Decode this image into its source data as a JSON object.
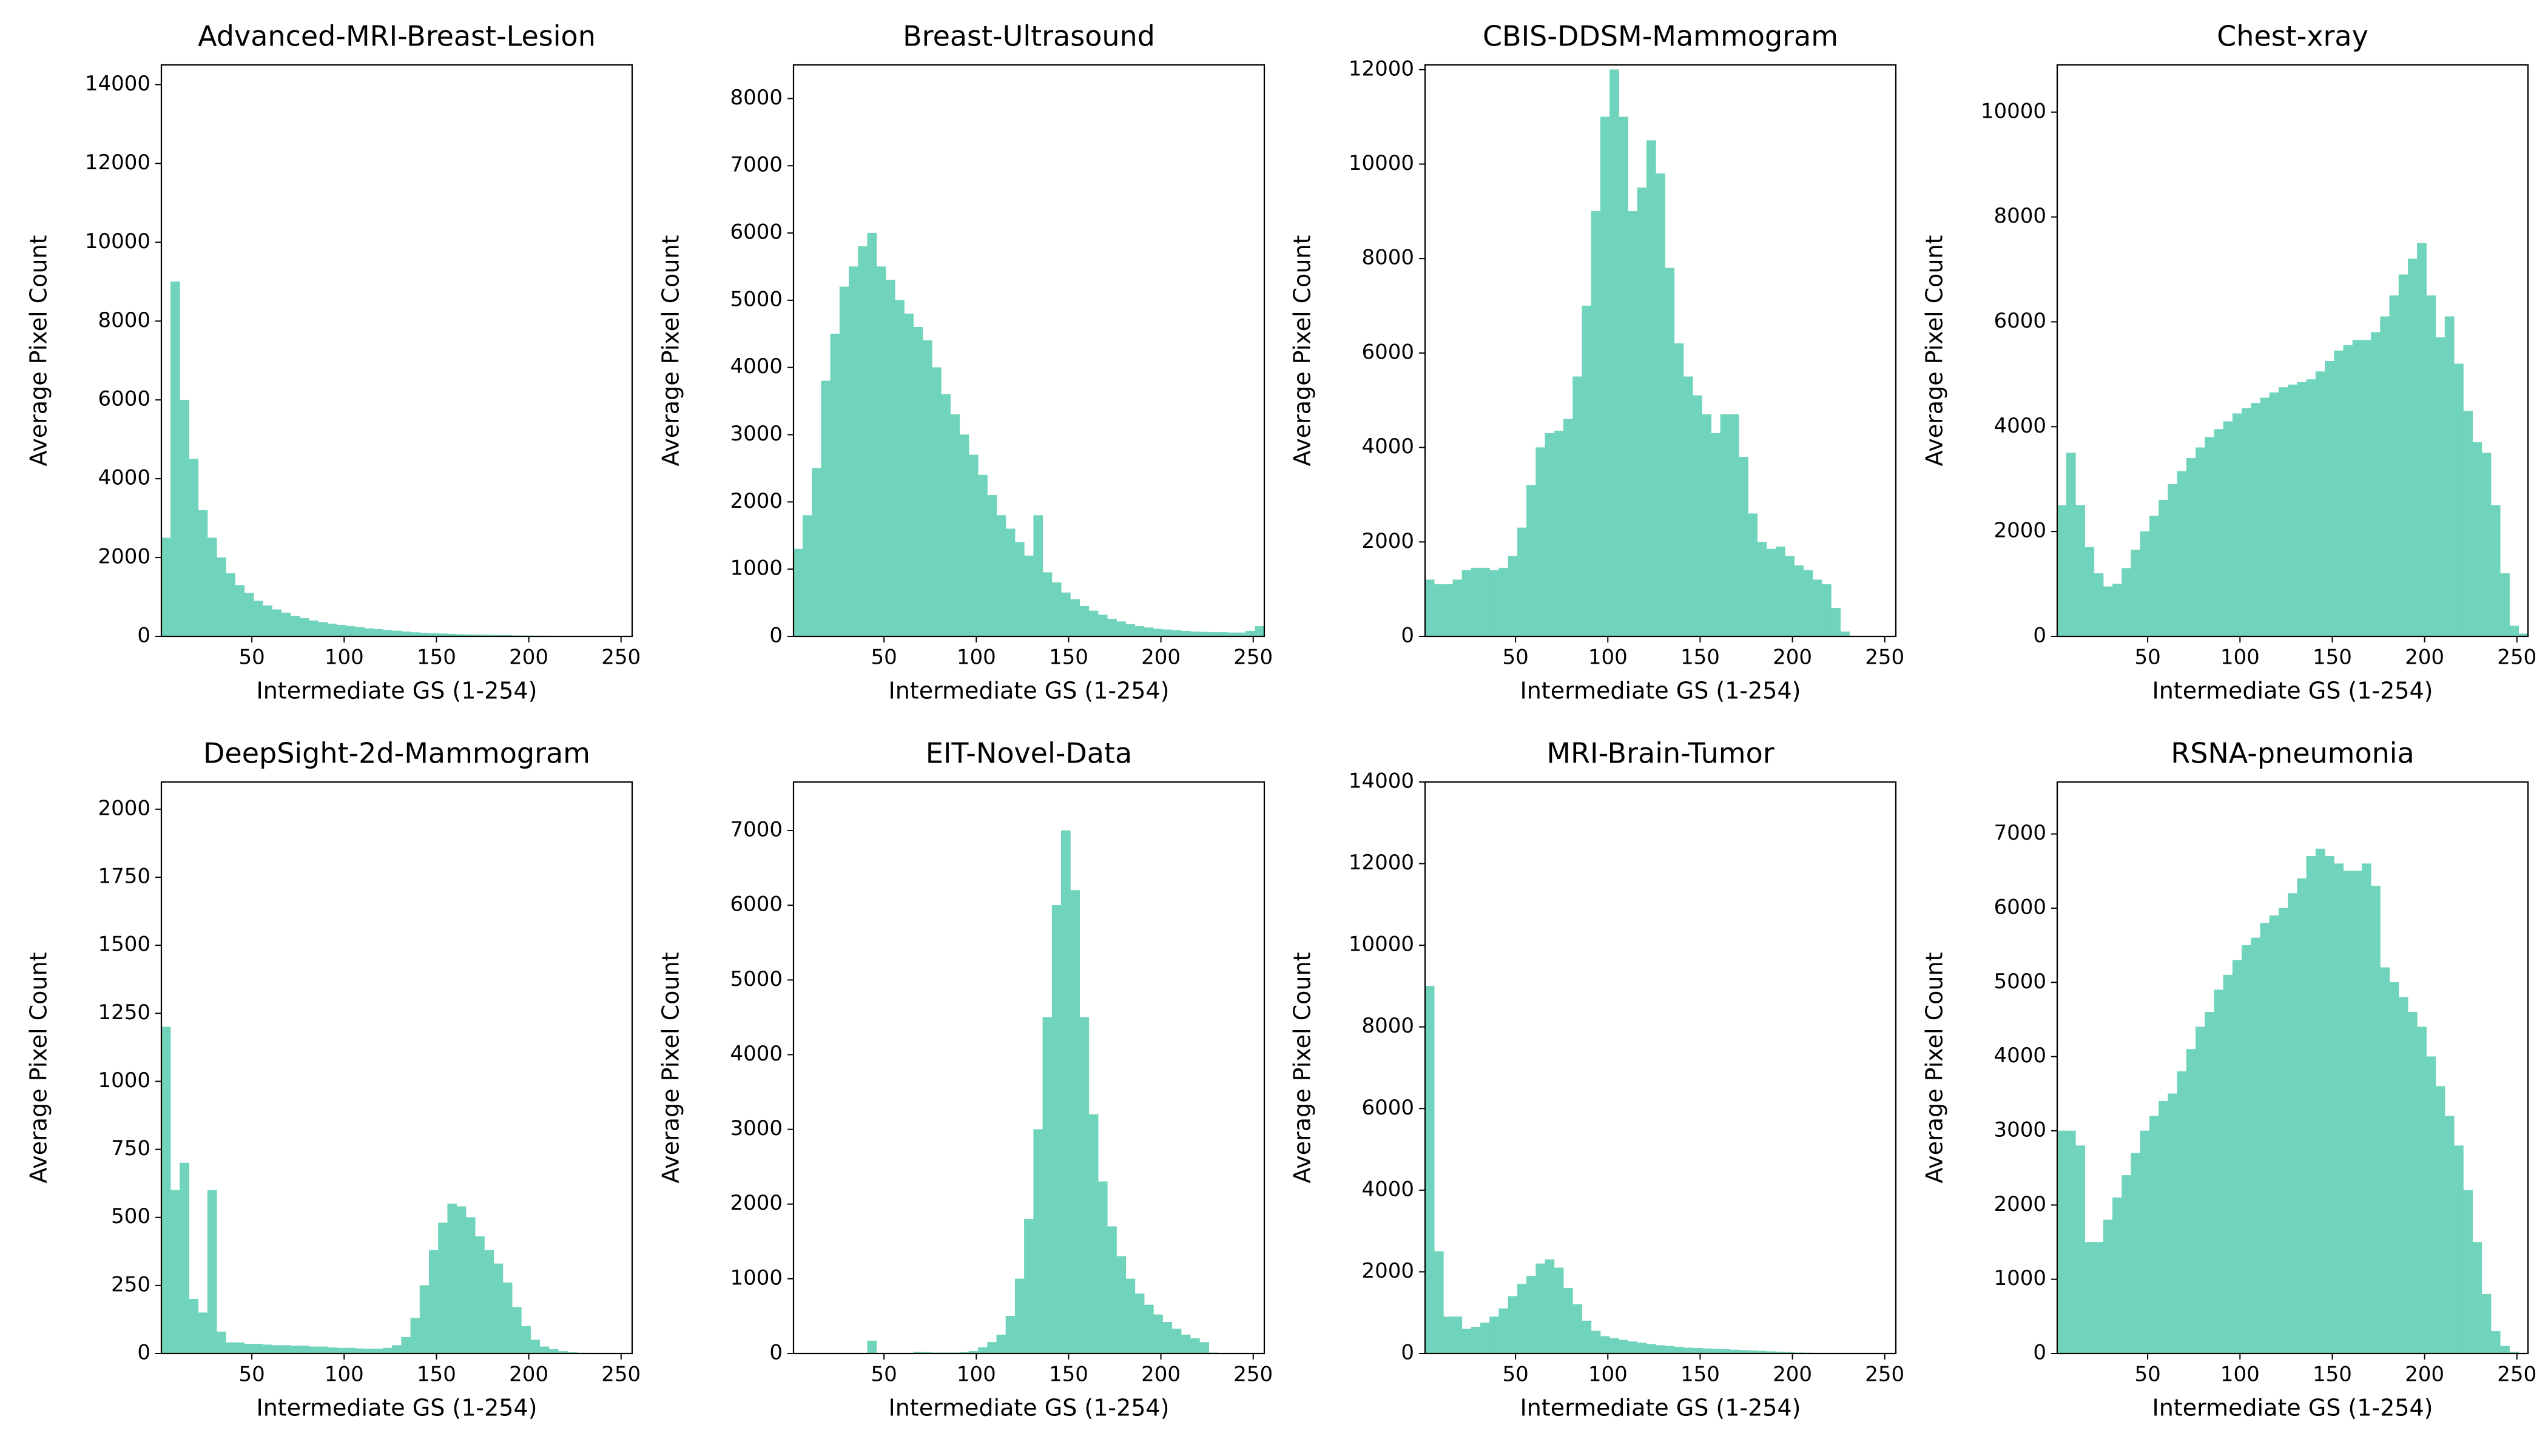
{
  "chart_data": [
    {
      "type": "histogram",
      "title": "Advanced-MRI-Breast-Lesion",
      "xlabel": "Intermediate GS (1-254)",
      "ylabel": "Average Pixel Count",
      "color": "#6fd4bb",
      "bins": [
        1,
        6,
        11,
        16,
        21,
        26,
        31,
        36,
        41,
        46,
        51,
        56,
        61,
        66,
        71,
        76,
        81,
        86,
        91,
        96,
        101,
        106,
        111,
        116,
        121,
        126,
        131,
        136,
        141,
        146,
        151,
        156,
        161,
        166,
        171,
        176,
        181,
        186,
        191,
        196,
        201,
        206,
        211,
        216,
        221,
        226,
        231,
        236,
        241,
        246,
        251,
        256
      ],
      "values": [
        2500,
        9000,
        6000,
        4500,
        3200,
        2500,
        2000,
        1600,
        1300,
        1100,
        900,
        780,
        680,
        600,
        520,
        460,
        400,
        360,
        320,
        290,
        260,
        230,
        200,
        180,
        160,
        140,
        120,
        100,
        90,
        80,
        70,
        60,
        50,
        45,
        40,
        35,
        30,
        25,
        20,
        18,
        15,
        12,
        10,
        8,
        6,
        5,
        4,
        3,
        2,
        1,
        0
      ],
      "xlim": [
        1,
        256
      ],
      "ylim": [
        0,
        14500
      ],
      "xticks": [
        50,
        100,
        150,
        200,
        250
      ],
      "yticks": [
        0,
        2000,
        4000,
        6000,
        8000,
        10000,
        12000,
        14000
      ]
    },
    {
      "type": "histogram",
      "title": "Breast-Ultrasound",
      "xlabel": "Intermediate GS (1-254)",
      "ylabel": "Average Pixel Count",
      "color": "#6fd4bb",
      "bins": [
        1,
        6,
        11,
        16,
        21,
        26,
        31,
        36,
        41,
        46,
        51,
        56,
        61,
        66,
        71,
        76,
        81,
        86,
        91,
        96,
        101,
        106,
        111,
        116,
        121,
        126,
        131,
        136,
        141,
        146,
        151,
        156,
        161,
        166,
        171,
        176,
        181,
        186,
        191,
        196,
        201,
        206,
        211,
        216,
        221,
        226,
        231,
        236,
        241,
        246,
        251,
        256
      ],
      "values": [
        1300,
        1800,
        2500,
        3800,
        4500,
        5200,
        5500,
        5800,
        6000,
        5500,
        5300,
        5000,
        4800,
        4600,
        4400,
        4000,
        3600,
        3300,
        3000,
        2700,
        2400,
        2100,
        1800,
        1600,
        1400,
        1200,
        1800,
        950,
        800,
        650,
        550,
        450,
        380,
        320,
        260,
        220,
        180,
        150,
        130,
        110,
        100,
        90,
        80,
        70,
        65,
        60,
        60,
        55,
        55,
        80,
        150
      ],
      "xlim": [
        1,
        256
      ],
      "ylim": [
        0,
        8500
      ],
      "xticks": [
        50,
        100,
        150,
        200,
        250
      ],
      "yticks": [
        0,
        1000,
        2000,
        3000,
        4000,
        5000,
        6000,
        7000,
        8000
      ]
    },
    {
      "type": "histogram",
      "title": "CBIS-DDSM-Mammogram",
      "xlabel": "Intermediate GS (1-254)",
      "ylabel": "Average Pixel Count",
      "color": "#6fd4bb",
      "bins": [
        1,
        6,
        11,
        16,
        21,
        26,
        31,
        36,
        41,
        46,
        51,
        56,
        61,
        66,
        71,
        76,
        81,
        86,
        91,
        96,
        101,
        106,
        111,
        116,
        121,
        126,
        131,
        136,
        141,
        146,
        151,
        156,
        161,
        166,
        171,
        176,
        181,
        186,
        191,
        196,
        201,
        206,
        211,
        216,
        221,
        226,
        231,
        236,
        241,
        246,
        251,
        256
      ],
      "values": [
        1200,
        1100,
        1100,
        1200,
        1400,
        1450,
        1450,
        1400,
        1450,
        1700,
        2300,
        3200,
        4000,
        4300,
        4350,
        4600,
        5500,
        7000,
        9000,
        11000,
        12000,
        11000,
        9000,
        9500,
        10500,
        9800,
        7800,
        6200,
        5500,
        5100,
        4700,
        4300,
        4700,
        4700,
        3800,
        2600,
        2000,
        1850,
        1900,
        1700,
        1500,
        1400,
        1200,
        1100,
        600,
        100,
        0,
        0,
        0,
        0,
        0
      ],
      "xlim": [
        1,
        256
      ],
      "ylim": [
        0,
        12100
      ],
      "xticks": [
        50,
        100,
        150,
        200,
        250
      ],
      "yticks": [
        0,
        2000,
        4000,
        6000,
        8000,
        10000,
        12000
      ]
    },
    {
      "type": "histogram",
      "title": "Chest-xray",
      "xlabel": "Intermediate GS (1-254)",
      "ylabel": "Average Pixel Count",
      "color": "#6fd4bb",
      "bins": [
        1,
        6,
        11,
        16,
        21,
        26,
        31,
        36,
        41,
        46,
        51,
        56,
        61,
        66,
        71,
        76,
        81,
        86,
        91,
        96,
        101,
        106,
        111,
        116,
        121,
        126,
        131,
        136,
        141,
        146,
        151,
        156,
        161,
        166,
        171,
        176,
        181,
        186,
        191,
        196,
        201,
        206,
        211,
        216,
        221,
        226,
        231,
        236,
        241,
        246,
        251,
        256
      ],
      "values": [
        2500,
        3500,
        2500,
        1700,
        1200,
        950,
        1000,
        1300,
        1650,
        2000,
        2300,
        2600,
        2900,
        3150,
        3400,
        3600,
        3800,
        3950,
        4100,
        4250,
        4350,
        4450,
        4550,
        4650,
        4750,
        4800,
        4850,
        4900,
        5050,
        5250,
        5450,
        5550,
        5650,
        5650,
        5800,
        6100,
        6500,
        6900,
        7200,
        7500,
        6500,
        5700,
        6100,
        5200,
        4300,
        3700,
        3500,
        2500,
        1200,
        200,
        50
      ],
      "xlim": [
        1,
        256
      ],
      "ylim": [
        0,
        10900
      ],
      "xticks": [
        50,
        100,
        150,
        200,
        250
      ],
      "yticks": [
        0,
        2000,
        4000,
        6000,
        8000,
        10000
      ]
    },
    {
      "type": "histogram",
      "title": "DeepSight-2d-Mammogram",
      "xlabel": "Intermediate GS (1-254)",
      "ylabel": "Average Pixel Count",
      "color": "#6fd4bb",
      "bins": [
        1,
        6,
        11,
        16,
        21,
        26,
        31,
        36,
        41,
        46,
        51,
        56,
        61,
        66,
        71,
        76,
        81,
        86,
        91,
        96,
        101,
        106,
        111,
        116,
        121,
        126,
        131,
        136,
        141,
        146,
        151,
        156,
        161,
        166,
        171,
        176,
        181,
        186,
        191,
        196,
        201,
        206,
        211,
        216,
        221,
        226,
        231,
        236,
        241,
        246,
        251,
        256
      ],
      "values": [
        1200,
        600,
        700,
        200,
        150,
        600,
        80,
        40,
        40,
        35,
        35,
        32,
        30,
        30,
        28,
        28,
        25,
        25,
        22,
        20,
        20,
        18,
        17,
        17,
        20,
        30,
        60,
        130,
        250,
        380,
        480,
        550,
        540,
        500,
        430,
        380,
        330,
        260,
        170,
        100,
        50,
        25,
        15,
        8,
        4,
        2,
        1,
        0,
        0,
        0,
        0
      ],
      "xlim": [
        1,
        256
      ],
      "ylim": [
        0,
        2100
      ],
      "xticks": [
        50,
        100,
        150,
        200,
        250
      ],
      "yticks": [
        0,
        250,
        500,
        750,
        1000,
        1250,
        1500,
        1750,
        2000
      ]
    },
    {
      "type": "histogram",
      "title": "EIT-Novel-Data",
      "xlabel": "Intermediate GS (1-254)",
      "ylabel": "Average Pixel Count",
      "color": "#6fd4bb",
      "bins": [
        1,
        6,
        11,
        16,
        21,
        26,
        31,
        36,
        41,
        46,
        51,
        56,
        61,
        66,
        71,
        76,
        81,
        86,
        91,
        96,
        101,
        106,
        111,
        116,
        121,
        126,
        131,
        136,
        141,
        146,
        151,
        156,
        161,
        166,
        171,
        176,
        181,
        186,
        191,
        196,
        201,
        206,
        211,
        216,
        221,
        226,
        231,
        236,
        241,
        246,
        251,
        256
      ],
      "values": [
        0,
        0,
        0,
        0,
        0,
        0,
        0,
        0,
        170,
        0,
        0,
        0,
        0,
        20,
        15,
        10,
        10,
        10,
        15,
        30,
        80,
        150,
        250,
        500,
        1000,
        1800,
        3000,
        4500,
        6000,
        7000,
        6200,
        4500,
        3200,
        2300,
        1700,
        1300,
        1000,
        800,
        650,
        520,
        420,
        330,
        250,
        200,
        150,
        10,
        0,
        0,
        0,
        0,
        0
      ],
      "xlim": [
        1,
        256
      ],
      "ylim": [
        0,
        7650
      ],
      "xticks": [
        50,
        100,
        150,
        200,
        250
      ],
      "yticks": [
        0,
        1000,
        2000,
        3000,
        4000,
        5000,
        6000,
        7000
      ]
    },
    {
      "type": "histogram",
      "title": "MRI-Brain-Tumor",
      "xlabel": "Intermediate GS (1-254)",
      "ylabel": "Average Pixel Count",
      "color": "#6fd4bb",
      "bins": [
        1,
        6,
        11,
        16,
        21,
        26,
        31,
        36,
        41,
        46,
        51,
        56,
        61,
        66,
        71,
        76,
        81,
        86,
        91,
        96,
        101,
        106,
        111,
        116,
        121,
        126,
        131,
        136,
        141,
        146,
        151,
        156,
        161,
        166,
        171,
        176,
        181,
        186,
        191,
        196,
        201,
        206,
        211,
        216,
        221,
        226,
        231,
        236,
        241,
        246,
        251,
        256
      ],
      "values": [
        9000,
        2500,
        900,
        900,
        600,
        650,
        750,
        900,
        1100,
        1400,
        1700,
        1900,
        2200,
        2300,
        2100,
        1600,
        1200,
        800,
        550,
        420,
        370,
        330,
        290,
        260,
        230,
        200,
        180,
        160,
        140,
        130,
        120,
        110,
        100,
        90,
        80,
        70,
        60,
        50,
        40,
        30,
        20,
        15,
        10,
        8,
        5,
        3,
        2,
        1,
        0,
        0,
        0
      ],
      "xlim": [
        1,
        256
      ],
      "ylim": [
        0,
        14000
      ],
      "xticks": [
        50,
        100,
        150,
        200,
        250
      ],
      "yticks": [
        0,
        2000,
        4000,
        6000,
        8000,
        10000,
        12000,
        14000
      ]
    },
    {
      "type": "histogram",
      "title": "RSNA-pneumonia",
      "xlabel": "Intermediate GS (1-254)",
      "ylabel": "Average Pixel Count",
      "color": "#6fd4bb",
      "bins": [
        1,
        6,
        11,
        16,
        21,
        26,
        31,
        36,
        41,
        46,
        51,
        56,
        61,
        66,
        71,
        76,
        81,
        86,
        91,
        96,
        101,
        106,
        111,
        116,
        121,
        126,
        131,
        136,
        141,
        146,
        151,
        156,
        161,
        166,
        171,
        176,
        181,
        186,
        191,
        196,
        201,
        206,
        211,
        216,
        221,
        226,
        231,
        236,
        241,
        246,
        251,
        256
      ],
      "values": [
        3000,
        3000,
        2800,
        1500,
        1500,
        1800,
        2100,
        2400,
        2700,
        3000,
        3200,
        3400,
        3500,
        3800,
        4100,
        4400,
        4600,
        4900,
        5100,
        5300,
        5500,
        5600,
        5800,
        5900,
        6000,
        6200,
        6400,
        6700,
        6800,
        6700,
        6600,
        6500,
        6500,
        6600,
        6300,
        5200,
        5000,
        4800,
        4600,
        4400,
        4000,
        3600,
        3200,
        2800,
        2200,
        1500,
        800,
        300,
        100,
        20,
        5
      ],
      "xlim": [
        1,
        256
      ],
      "ylim": [
        0,
        7700
      ],
      "xticks": [
        50,
        100,
        150,
        200,
        250
      ],
      "yticks": [
        0,
        1000,
        2000,
        3000,
        4000,
        5000,
        6000,
        7000
      ]
    }
  ]
}
